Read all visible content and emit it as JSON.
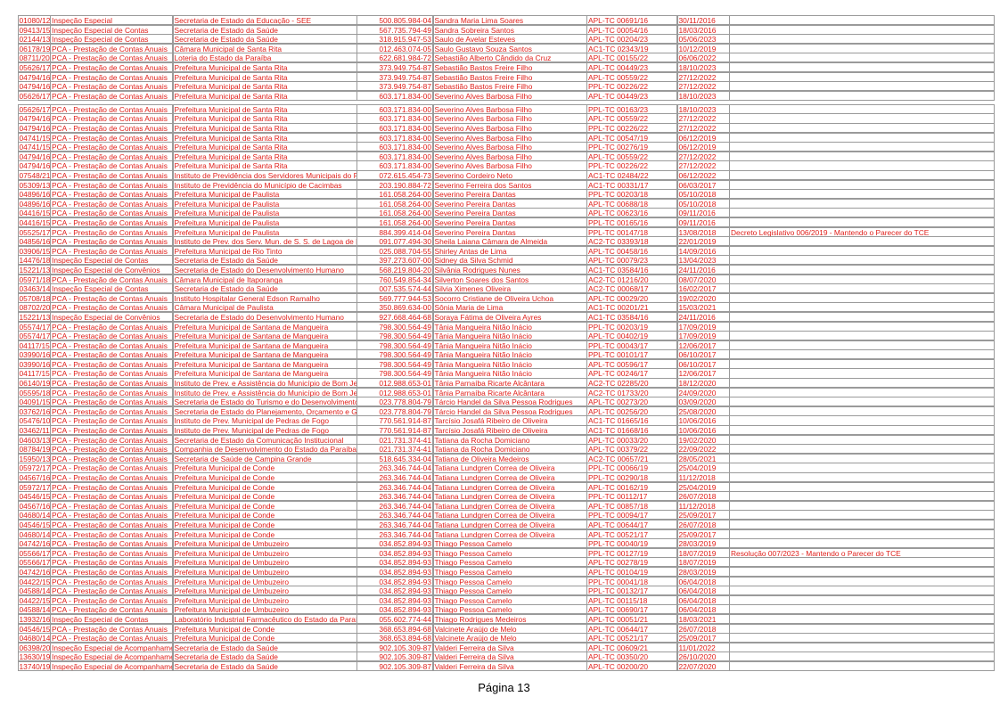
{
  "table": {
    "rows": [
      [
        "01080/12",
        "Inspeção Especial",
        "Secretaria de Estado da Educação - SEE",
        "500.805.984-04",
        "Sandra Maria Lima Soares",
        "APL-TC 00691/16",
        "30/11/2016"
      ],
      [
        "09413/15",
        "Inspeção Especial de Contas",
        "Secretaria de Estado da Saúde",
        "567.735.794-49",
        "Sandra Sobreira Santos",
        "APL-TC 00054/16",
        "18/03/2016"
      ],
      [
        "02144/13",
        "Inspeção Especial de Contas",
        "Secretaria de Estado da Saúde",
        "318.915.947-53",
        "Saulo de Avelar Esteves",
        "APL-TC 00204/23",
        "05/06/2023"
      ],
      [
        "06178/19",
        "PCA - Prestação de Contas Anuais",
        "Câmara Municipal de Santa Rita",
        "012.463.074-05",
        "Saulo Gustavo Souza Santos",
        "AC1-TC 02343/19",
        "10/12/2019"
      ],
      [
        "08711/20",
        "PCA - Prestação de Contas Anuais",
        "Loteria do Estado da Paraíba",
        "622.681.984-72",
        "Sebastião Alberto Cândido da Cruz",
        "APL-TC 00155/22",
        "06/06/2022"
      ],
      [
        "05626/17",
        "PCA - Prestação de Contas Anuais",
        "Prefeitura Municipal de Santa Rita",
        "373.949.754-87",
        "Sebastião Bastos Freire Filho",
        "APL-TC 00449/23",
        "18/10/2023"
      ],
      [
        "04794/16",
        "PCA - Prestação de Contas Anuais",
        "Prefeitura Municipal de Santa Rita",
        "373.949.754-87",
        "Sebastião Bastos Freire Filho",
        "APL-TC 00559/22",
        "27/12/2022"
      ],
      [
        "04794/16",
        "PCA - Prestação de Contas Anuais",
        "Prefeitura Municipal de Santa Rita",
        "373.949.754-87",
        "Sebastião Bastos Freire Filho",
        "PPL-TC 00226/22",
        "27/12/2022"
      ],
      [
        "05626/17",
        "PCA - Prestação de Contas Anuais",
        "Prefeitura Municipal de Santa Rita",
        "603.171.834-00",
        "Severino Alves Barbosa Filho",
        "APL-TC 00449/23",
        "18/10/2023"
      ],
      [
        "05626/17",
        "PCA - Prestação de Contas Anuais",
        "Prefeitura Municipal de Santa Rita",
        "603.171.834-00",
        "Severino Alves Barbosa Filho",
        "PPL-TC 00163/23",
        "18/10/2023"
      ],
      [
        "04794/16",
        "PCA - Prestação de Contas Anuais",
        "Prefeitura Municipal de Santa Rita",
        "603.171.834-00",
        "Severino Alves Barbosa Filho",
        "APL-TC 00559/22",
        "27/12/2022"
      ],
      [
        "04794/16",
        "PCA - Prestação de Contas Anuais",
        "Prefeitura Municipal de Santa Rita",
        "603.171.834-00",
        "Severino Alves Barbosa Filho",
        "PPL-TC 00226/22",
        "27/12/2022"
      ],
      [
        "04741/15",
        "PCA - Prestação de Contas Anuais",
        "Prefeitura Municipal de Santa Rita",
        "603.171.834-00",
        "Severino Alves Barbosa Filho",
        "APL-TC 00547/19",
        "06/12/2019"
      ],
      [
        "04741/15",
        "PCA - Prestação de Contas Anuais",
        "Prefeitura Municipal de Santa Rita",
        "603.171.834-00",
        "Severino Alves Barbosa Filho",
        "PPL-TC 00276/19",
        "06/12/2019"
      ],
      [
        "04794/16",
        "PCA - Prestação de Contas Anuais",
        "Prefeitura Municipal de Santa Rita",
        "603.171.834-00",
        "Severino Alves Barbosa Filho",
        "APL-TC 00559/22",
        "27/12/2022"
      ],
      [
        "04794/16",
        "PCA - Prestação de Contas Anuais",
        "Prefeitura Municipal de Santa Rita",
        "603.171.834-00",
        "Severino Alves Barbosa Filho",
        "PPL-TC 00226/22",
        "27/12/2022"
      ],
      [
        "07548/21",
        "PCA - Prestação de Contas Anuais",
        "Instituto de Previdência dos Servidores Municipais do Po",
        "072.615.454-73",
        "Severino Cordeiro Neto",
        "AC1-TC 02484/22",
        "06/12/2022"
      ],
      [
        "05309/13",
        "PCA - Prestação de Contas Anuais",
        "Instituto de Previdência do Município de Cacimbas",
        "203.190.884-72",
        "Severino Ferreira dos Santos",
        "AC1-TC 00331/17",
        "06/03/2017"
      ],
      [
        "04896/16",
        "PCA - Prestação de Contas Anuais",
        "Prefeitura Municipal de Paulista",
        "161.058.264-00",
        "Severino Pereira Dantas",
        "PPL-TC 00203/18",
        "05/10/2018"
      ],
      [
        "04896/16",
        "PCA - Prestação de Contas Anuais",
        "Prefeitura Municipal de Paulista",
        "161.058.264-00",
        "Severino Pereira Dantas",
        "APL-TC 00688/18",
        "05/10/2018"
      ],
      [
        "04416/15",
        "PCA - Prestação de Contas Anuais",
        "Prefeitura Municipal de Paulista",
        "161.058.264-00",
        "Severino Pereira Dantas",
        "APL-TC 00623/16",
        "09/11/2016"
      ],
      [
        "04416/15",
        "PCA - Prestação de Contas Anuais",
        "Prefeitura Municipal de Paulista",
        "161.058.264-00",
        "Severino Pereira Dantas",
        "PPL-TC 00165/16",
        "09/11/2016"
      ],
      [
        "05525/17",
        "PCA - Prestação de Contas Anuais",
        "Prefeitura Municipal de Paulista",
        "884.399.414-04",
        "Severino Pereira Dantas",
        "PPL-TC 00147/18",
        "13/08/2018",
        "Decreto Legislativo 006/2019 - Mantendo o Parecer do TCE"
      ],
      [
        "04856/16",
        "PCA - Prestação de Contas Anuais",
        "Instituto de Prev. dos Serv. Mun. de S. S. de Lagoa de R",
        "091.077.494-30",
        "Sheila Laiana Câmara de Almeida",
        "AC2-TC 03393/18",
        "22/01/2019"
      ],
      [
        "03906/15",
        "PCA - Prestação de Contas Anuais",
        "Prefeitura Municipal de Rio Tinto",
        "025.088.704-55",
        "Shirley Antas de Lima",
        "APL-TC 00458/16",
        "14/09/2016"
      ],
      [
        "14476/18",
        "Inspeção Especial de Contas",
        "Secretaria de Estado da Saúde",
        "397.273.607-00",
        "Sidney da Silva Schmid",
        "APL-TC 00079/23",
        "13/04/2023"
      ],
      [
        "15221/13",
        "Inspeção Especial de Convênios",
        "Secretaria de Estado do Desenvolvimento Humano",
        "568.219.804-20",
        "Silvânia Rodrigues Nunes",
        "AC1-TC 03584/16",
        "24/11/2016"
      ],
      [
        "05971/18",
        "PCA - Prestação de Contas Anuais",
        "Câmara Municipal de Itaporanga",
        "760.549.854-34",
        "Silverton Soares dos Santos",
        "AC2-TC 01216/20",
        "08/07/2020"
      ],
      [
        "03463/14",
        "Inspeção Especial de Contas",
        "Secretaria de Estado da Saúde",
        "007.535.574-44",
        "Silvia Ximenes Oliveira",
        "AC2-TC 00068/17",
        "16/02/2017"
      ],
      [
        "05708/18",
        "PCA - Prestação de Contas Anuais",
        "Instituto Hospitalar General Edson Ramalho",
        "569.777.944-53",
        "Socorro Cristiane de Oliveira Uchoa",
        "APL-TC 00029/20",
        "19/02/2020"
      ],
      [
        "08702/20",
        "PCA - Prestação de Contas Anuais",
        "Câmara Municipal de Paulista",
        "350.869.634-00",
        "Sônia Maria de Lima",
        "AC1-TC 00201/21",
        "15/03/2021"
      ],
      [
        "15221/13",
        "Inspeção Especial de Convênios",
        "Secretaria de Estado do Desenvolvimento Humano",
        "927.668.464-68",
        "Soraya Fátima de Oliveira Ayres",
        "AC1-TC 03584/16",
        "24/11/2016"
      ],
      [
        "05574/17",
        "PCA - Prestação de Contas Anuais",
        "Prefeitura Municipal de Santana de Mangueira",
        "798.300.564-49",
        "Tânia Mangueira Nitão Inácio",
        "PPL-TC 00203/19",
        "17/09/2019"
      ],
      [
        "05574/17",
        "PCA - Prestação de Contas Anuais",
        "Prefeitura Municipal de Santana de Mangueira",
        "798.300.564-49",
        "Tânia Mangueira Nitão Inácio",
        "APL-TC 00402/19",
        "17/09/2019"
      ],
      [
        "04117/15",
        "PCA - Prestação de Contas Anuais",
        "Prefeitura Municipal de Santana de Mangueira",
        "798.300.564-49",
        "Tânia Mangueira Nitão Inácio",
        "PPL-TC 00043/17",
        "12/06/2017"
      ],
      [
        "03990/16",
        "PCA - Prestação de Contas Anuais",
        "Prefeitura Municipal de Santana de Mangueira",
        "798.300.564-49",
        "Tânia Mangueira Nitão Inácio",
        "PPL-TC 00101/17",
        "06/10/2017"
      ],
      [
        "03990/16",
        "PCA - Prestação de Contas Anuais",
        "Prefeitura Municipal de Santana de Mangueira",
        "798.300.564-49",
        "Tânia Mangueira Nitão Inácio",
        "APL-TC 00596/17",
        "06/10/2017"
      ],
      [
        "04117/15",
        "PCA - Prestação de Contas Anuais",
        "Prefeitura Municipal de Santana de Mangueira",
        "798.300.564-49",
        "Tânia Mangueira Nitão Inácio",
        "APL-TC 00246/17",
        "12/06/2017"
      ],
      [
        "06140/19",
        "PCA - Prestação de Contas Anuais",
        "Instituto de Prev. e Assistência do Município de Bom Jes",
        "012.988.653-01",
        "Tânia Parnaíba Ricarte Alcântara",
        "AC2-TC 02285/20",
        "18/12/2020"
      ],
      [
        "05595/18",
        "PCA - Prestação de Contas Anuais",
        "Instituto de Prev. e Assistência do Município de Bom Jes",
        "012.988.653-01",
        "Tânia Parnaíba Ricarte Alcântara",
        "AC2-TC 01733/20",
        "24/09/2020"
      ],
      [
        "04091/15",
        "PCA - Prestação de Contas Anuais",
        "Secretaria de Estado do Turismo e do Desenvolvimento",
        "023.778.804-79",
        "Tárcio Handel da Silva Pessoa Rodrigues",
        "APL-TC 00273/20",
        "03/09/2020"
      ],
      [
        "03762/16",
        "PCA - Prestação de Contas Anuais",
        "Secretaria de Estado do Planejamento, Orçamento e Ges",
        "023.778.804-79",
        "Tárcio Handel da Silva Pessoa Rodrigues",
        "APL-TC 00256/20",
        "25/08/2020"
      ],
      [
        "05476/10",
        "PCA - Prestação de Contas Anuais",
        "Instituto de Prev. Municipal de Pedras de Fogo",
        "770.561.914-87",
        "Tarcísio Josafá Ribeiro de Oliveira",
        "AC1-TC 01665/16",
        "10/06/2016"
      ],
      [
        "03462/11",
        "PCA - Prestação de Contas Anuais",
        "Instituto de Prev. Municipal de Pedras de Fogo",
        "770.561.914-87",
        "Tarcísio Josafá Ribeiro de Oliveira",
        "AC1-TC 01668/16",
        "10/06/2016"
      ],
      [
        "04603/13",
        "PCA - Prestação de Contas Anuais",
        "Secretaria de Estado da Comunicação Institucional",
        "021.731.374-41",
        "Tatiana da Rocha Domiciano",
        "APL-TC 00033/20",
        "19/02/2020"
      ],
      [
        "08784/19",
        "PCA - Prestação de Contas Anuais",
        "Companhia de Desenvolvimento do Estado da Paraíba",
        "021.731.374-41",
        "Tatiana da Rocha Domiciano",
        "APL-TC 00379/22",
        "22/09/2022"
      ],
      [
        "15950/13",
        "PCA - Prestação de Contas Anuais",
        "Secretaria de Saúde de Campina Grande",
        "518.645.334-04",
        "Tatiana de Oliveira Medeiros",
        "AC2-TC 00657/21",
        "28/05/2021"
      ],
      [
        "05972/17",
        "PCA - Prestação de Contas Anuais",
        "Prefeitura Municipal de Conde",
        "263.346.744-04",
        "Tatiana Lundgren Correa de Oliveira",
        "PPL-TC 00066/19",
        "25/04/2019"
      ],
      [
        "04567/16",
        "PCA - Prestação de Contas Anuais",
        "Prefeitura Municipal de Conde",
        "263.346.744-04",
        "Tatiana Lundgren Correa de Oliveira",
        "PPL-TC 00290/18",
        "11/12/2018"
      ],
      [
        "05972/17",
        "PCA - Prestação de Contas Anuais",
        "Prefeitura Municipal de Conde",
        "263.346.744-04",
        "Tatiana Lundgren Correa de Oliveira",
        "APL-TC 00162/19",
        "25/04/2019"
      ],
      [
        "04546/15",
        "PCA - Prestação de Contas Anuais",
        "Prefeitura Municipal de Conde",
        "263.346.744-04",
        "Tatiana Lundgren Correa de Oliveira",
        "PPL-TC 00112/17",
        "26/07/2018"
      ],
      [
        "04567/16",
        "PCA - Prestação de Contas Anuais",
        "Prefeitura Municipal de Conde",
        "263.346.744-04",
        "Tatiana Lundgren Correa de Oliveira",
        "APL-TC 00857/18",
        "11/12/2018"
      ],
      [
        "04680/14",
        "PCA - Prestação de Contas Anuais",
        "Prefeitura Municipal de Conde",
        "263.346.744-04",
        "Tatiana Lundgren Correa de Oliveira",
        "PPL-TC 00094/17",
        "25/09/2017"
      ],
      [
        "04546/15",
        "PCA - Prestação de Contas Anuais",
        "Prefeitura Municipal de Conde",
        "263.346.744-04",
        "Tatiana Lundgren Correa de Oliveira",
        "APL-TC 00644/17",
        "26/07/2018"
      ],
      [
        "04680/14",
        "PCA - Prestação de Contas Anuais",
        "Prefeitura Municipal de Conde",
        "263.346.744-04",
        "Tatiana Lundgren Correa de Oliveira",
        "APL-TC 00521/17",
        "25/09/2017"
      ],
      [
        "04742/16",
        "PCA - Prestação de Contas Anuais",
        "Prefeitura Municipal de Umbuzeiro",
        "034.852.894-93",
        "Thiago Pessoa Camelo",
        "PPL-TC 00040/19",
        "28/03/2019"
      ],
      [
        "05566/17",
        "PCA - Prestação de Contas Anuais",
        "Prefeitura Municipal de Umbuzeiro",
        "034.852.894-93",
        "Thiago Pessoa Camelo",
        "PPL-TC 00127/19",
        "18/07/2019",
        "Resolução 007/2023 - Mantendo o Parecer do TCE"
      ],
      [
        "05566/17",
        "PCA - Prestação de Contas Anuais",
        "Prefeitura Municipal de Umbuzeiro",
        "034.852.894-93",
        "Thiago Pessoa Camelo",
        "APL-TC 00278/19",
        "18/07/2019"
      ],
      [
        "04742/16",
        "PCA - Prestação de Contas Anuais",
        "Prefeitura Municipal de Umbuzeiro",
        "034.852.894-93",
        "Thiago Pessoa Camelo",
        "APL-TC 00104/19",
        "28/03/2019"
      ],
      [
        "04422/15",
        "PCA - Prestação de Contas Anuais",
        "Prefeitura Municipal de Umbuzeiro",
        "034.852.894-93",
        "Thiago Pessoa Camelo",
        "PPL-TC 00041/18",
        "06/04/2018"
      ],
      [
        "04588/14",
        "PCA - Prestação de Contas Anuais",
        "Prefeitura Municipal de Umbuzeiro",
        "034.852.894-93",
        "Thiago Pessoa Camelo",
        "PPL-TC 00132/17",
        "06/04/2018"
      ],
      [
        "04422/15",
        "PCA - Prestação de Contas Anuais",
        "Prefeitura Municipal de Umbuzeiro",
        "034.852.894-93",
        "Thiago Pessoa Camelo",
        "APL-TC 00115/18",
        "06/04/2018"
      ],
      [
        "04588/14",
        "PCA - Prestação de Contas Anuais",
        "Prefeitura Municipal de Umbuzeiro",
        "034.852.894-93",
        "Thiago Pessoa Camelo",
        "APL-TC 00690/17",
        "06/04/2018"
      ],
      [
        "13932/16",
        "Inspeção Especial de Contas",
        "Laboratório Industrial Farmacêutico do Estado da Paraíb",
        "055.602.774-44",
        "Thiago Rodrigues Medeiros",
        "APL-TC 00051/21",
        "18/03/2021"
      ],
      [
        "04546/15",
        "PCA - Prestação de Contas Anuais",
        "Prefeitura Municipal de Conde",
        "368.653.894-68",
        "Valcinete Araújo de Melo",
        "APL-TC 00644/17",
        "26/07/2018"
      ],
      [
        "04680/14",
        "PCA - Prestação de Contas Anuais",
        "Prefeitura Municipal de Conde",
        "368.653.894-68",
        "Valcinete Araújo de Melo",
        "APL-TC 00521/17",
        "25/09/2017"
      ],
      [
        "06398/20",
        "Inspeção Especial de Acompanhamen",
        "Secretaria de Estado da Saúde",
        "902.105.309-87",
        "Valderi Ferreira da Silva",
        "APL-TC 00609/21",
        "11/01/2022"
      ],
      [
        "13630/19",
        "Inspeção Especial de Acompanhamen",
        "Secretaria de Estado da Saúde",
        "902.105.309-87",
        "Valderi Ferreira da Silva",
        "APL-TC 00350/20",
        "26/10/2020"
      ],
      [
        "13740/19",
        "Inspeção Especial de Acompanhamen",
        "Secretaria de Estado da Saúde",
        "902.105.309-87",
        "Valderi Ferreira da Silva",
        "APL-TC 00200/20",
        "22/07/2020"
      ]
    ]
  },
  "footer": {
    "page": "Página 13"
  }
}
